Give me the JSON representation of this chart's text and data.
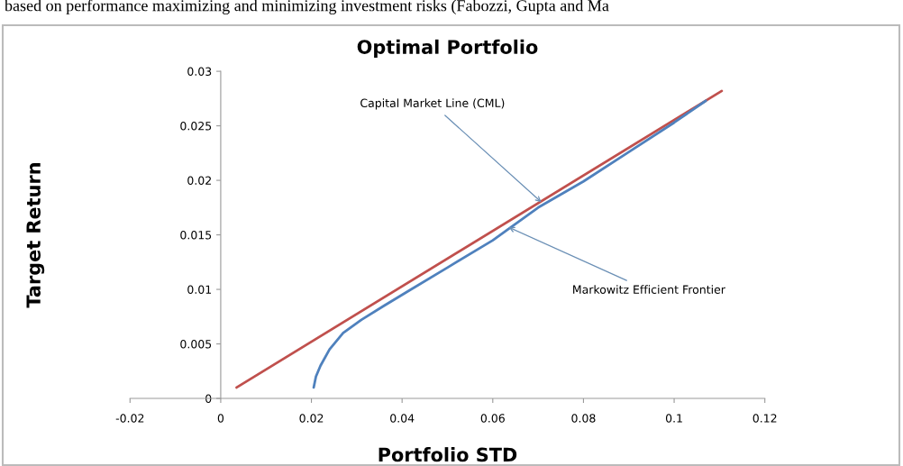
{
  "chart_data": {
    "type": "line",
    "title": "Optimal Portfolio",
    "xlabel": "Portfolio STD",
    "ylabel": "Target Return",
    "xlim": [
      -0.02,
      0.12
    ],
    "xticks": [
      -0.02,
      0,
      0.02,
      0.04,
      0.06,
      0.08,
      0.1,
      0.12
    ],
    "ylim": [
      0,
      0.03
    ],
    "yticks": [
      0,
      0.005,
      0.01,
      0.015,
      0.02,
      0.025,
      0.03
    ],
    "grid": false,
    "marker": "none",
    "line_style": "solid",
    "series": [
      {
        "color": "#c0504d",
        "x": [
          0.0035,
          0.1105
        ],
        "values": [
          0.001,
          0.0282
        ]
      },
      {
        "color": "#4f81bd",
        "x": [
          0.0205,
          0.021,
          0.022,
          0.024,
          0.027,
          0.031,
          0.036,
          0.042,
          0.05,
          0.06,
          0.07,
          0.08,
          0.09,
          0.1,
          0.107
        ],
        "values": [
          0.001,
          0.002,
          0.003,
          0.0045,
          0.006,
          0.0072,
          0.0085,
          0.01,
          0.012,
          0.0145,
          0.0175,
          0.0199,
          0.0226,
          0.0253,
          0.0273
        ]
      }
    ],
    "annotations": [
      {
        "text": "Capital Market Line (CML)",
        "x": 0.0707,
        "y": 0.018
      },
      {
        "text": "Markowitz Efficient Frontier",
        "x": 0.0635,
        "y": 0.0157
      },
      "based on performance maximizing and minimizing investment risks (Fabozzi, Gupta and Ma"
    ]
  }
}
